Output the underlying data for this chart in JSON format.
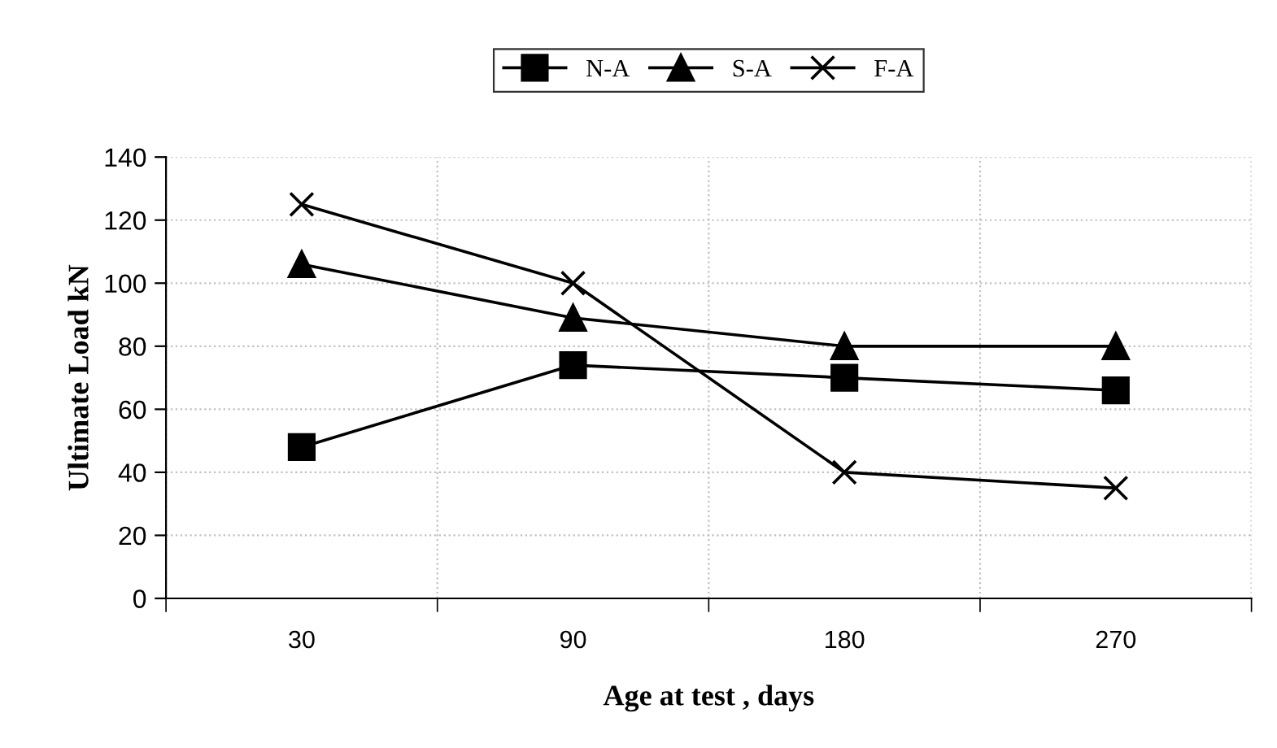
{
  "chart_data": {
    "type": "line",
    "xlabel": "Age at test , days",
    "ylabel": "Ultimate Load kN",
    "categories": [
      "30",
      "90",
      "180",
      "270"
    ],
    "series": [
      {
        "name": "N-A",
        "color": "#000000",
        "marker": "square",
        "values": [
          48,
          74,
          70,
          66
        ]
      },
      {
        "name": "S-A",
        "color": "#000000",
        "marker": "triangle",
        "values": [
          106,
          89,
          80,
          80
        ]
      },
      {
        "name": "F-A",
        "color": "#000000",
        "marker": "cross",
        "values": [
          125,
          100,
          40,
          35
        ]
      }
    ],
    "ylim": [
      0,
      140
    ],
    "yticks": [
      0,
      20,
      40,
      60,
      80,
      100,
      120,
      140
    ],
    "grid": true,
    "legend": "top",
    "line_style": "solid"
  }
}
